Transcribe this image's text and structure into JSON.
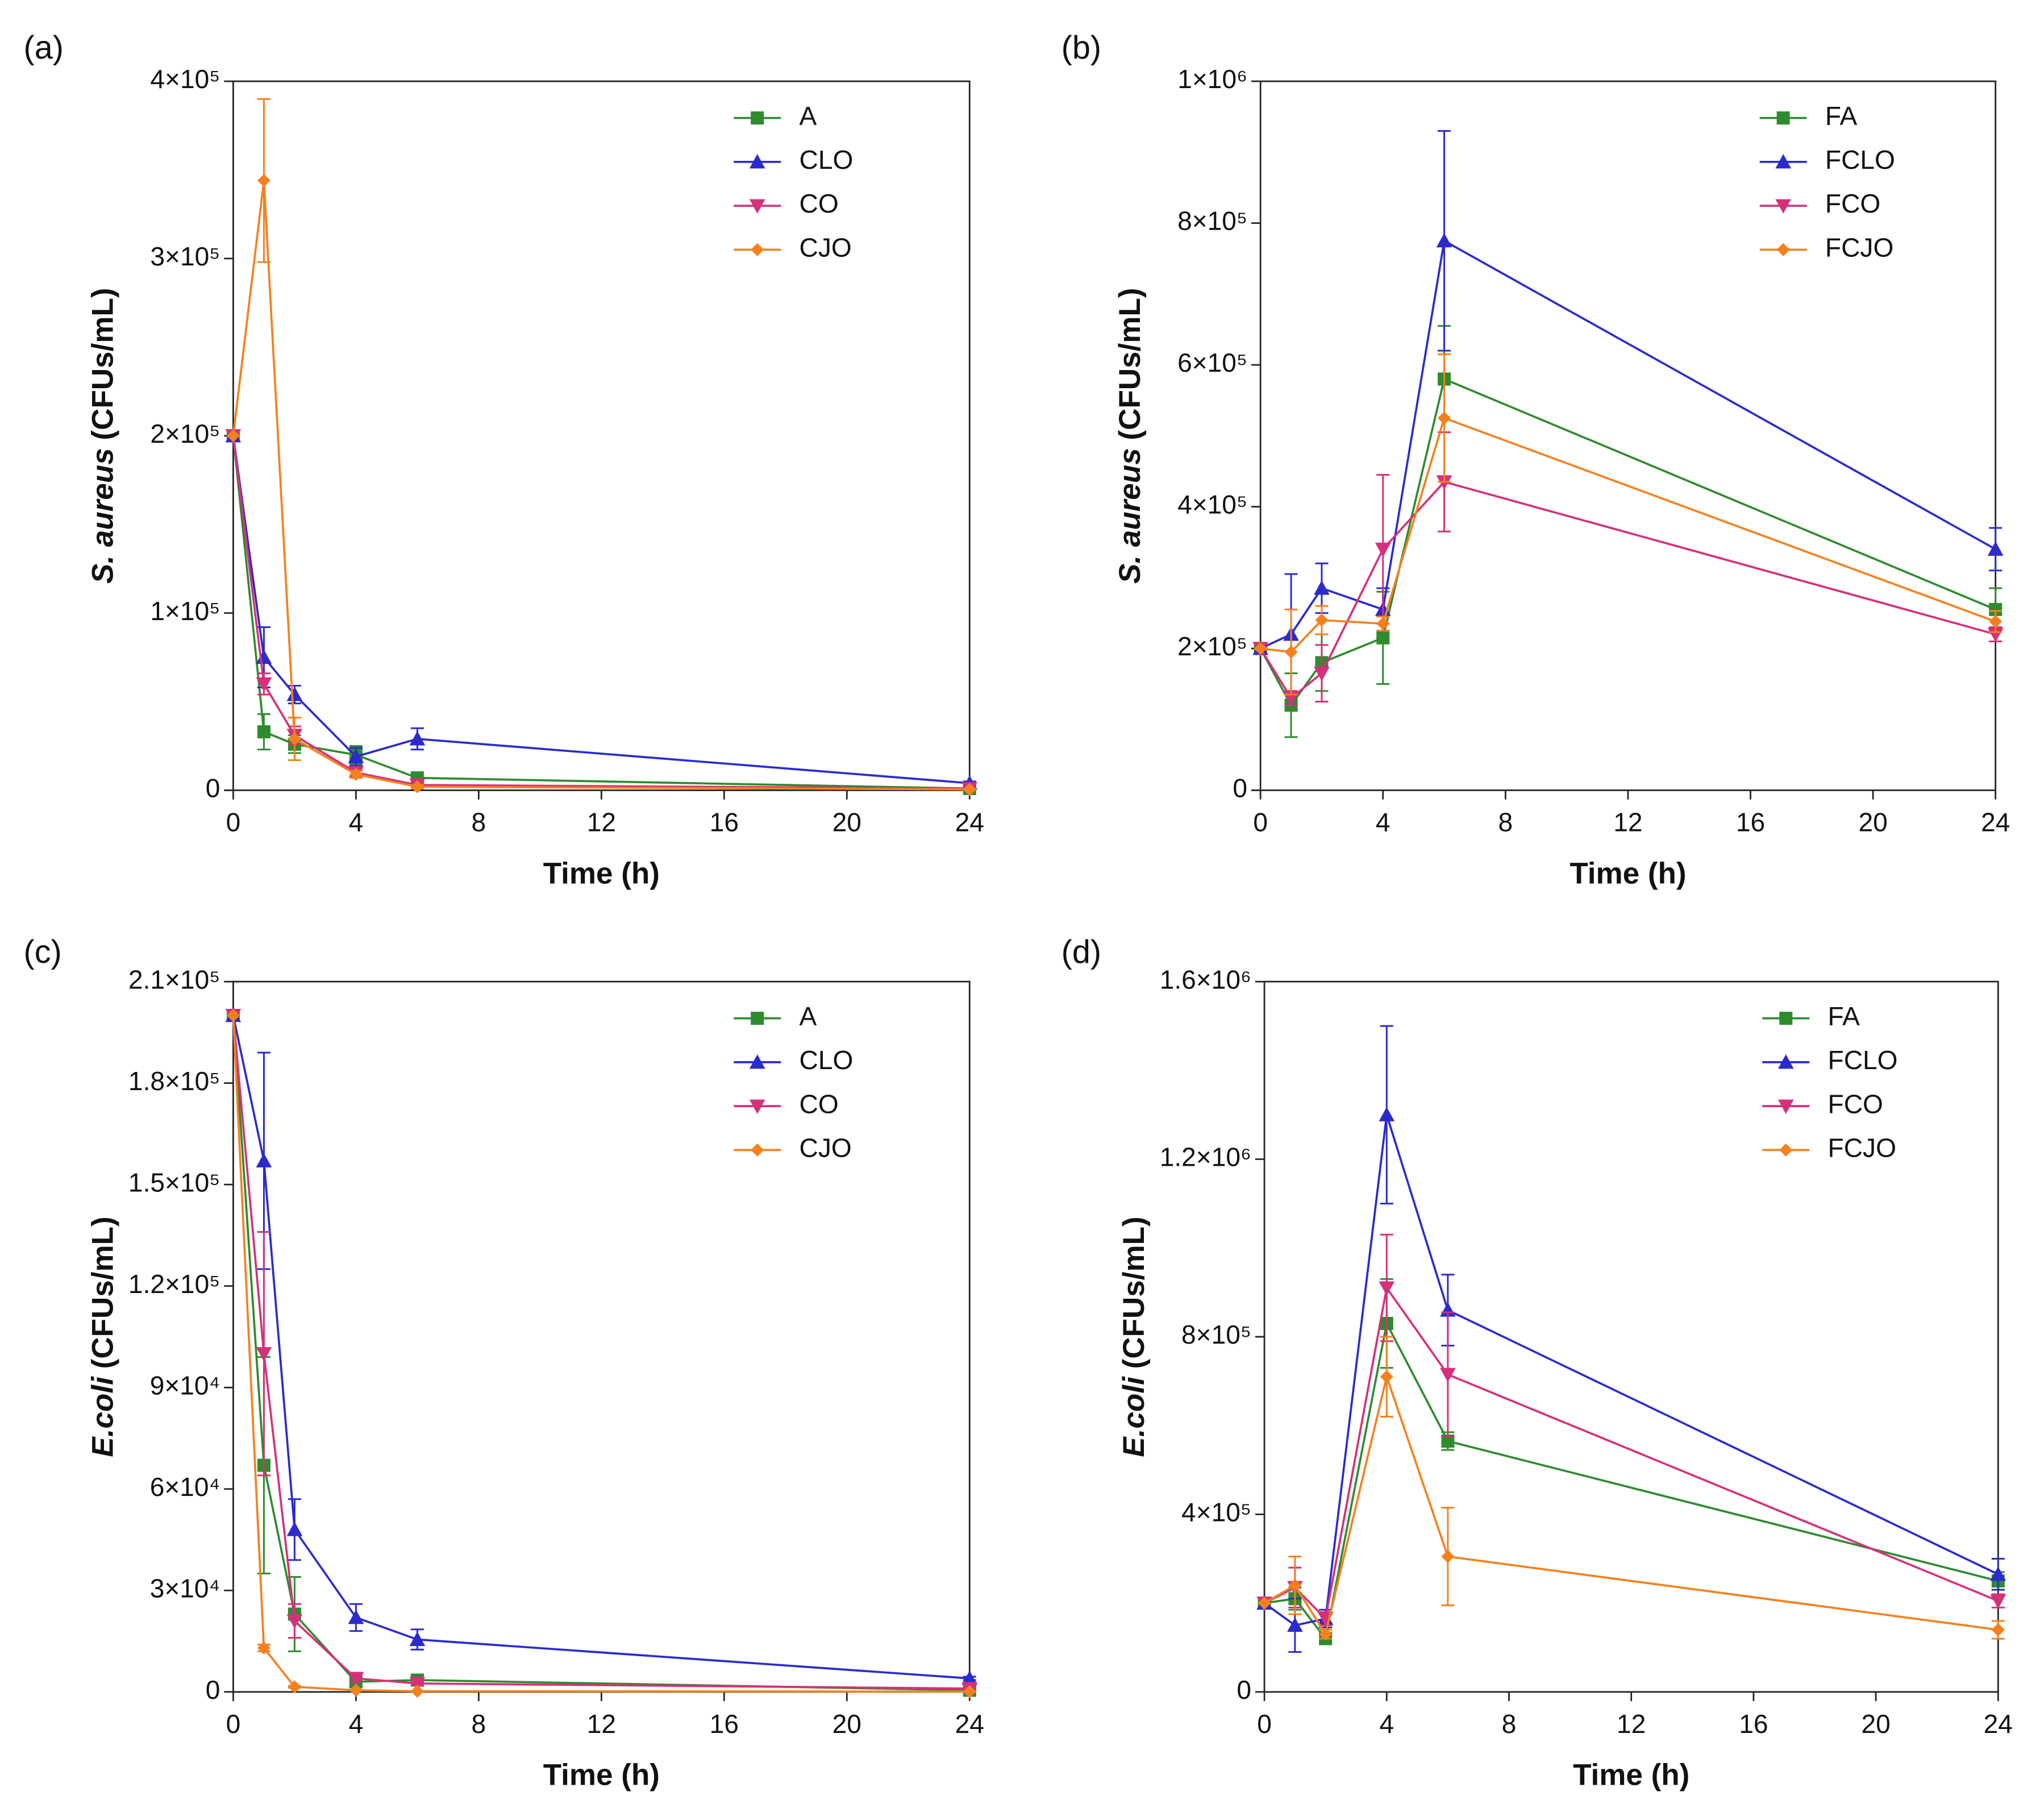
{
  "chart_data": [
    {
      "type": "line",
      "panel": "(a)",
      "xlabel": "Time (h)",
      "ylabel": {
        "organism": "S. aureus",
        "unit": "(CFUs/mL)"
      },
      "x": [
        0,
        1,
        2,
        4,
        6,
        24
      ],
      "xlim": [
        0,
        24
      ],
      "xticks": [
        0,
        4,
        8,
        12,
        16,
        20,
        24
      ],
      "ylim": [
        0,
        400000
      ],
      "yticks": [
        0,
        {
          "value": 100000,
          "label": "1×10⁵"
        },
        {
          "value": 200000,
          "label": "2×10⁵"
        },
        {
          "value": 300000,
          "label": "3×10⁵"
        },
        {
          "value": 400000,
          "label": "4×10⁵"
        }
      ],
      "legend": "top-right",
      "series": [
        {
          "name": "A",
          "color": "#2e8b2e",
          "marker": "square",
          "values": [
            200000,
            33000,
            26000,
            20000,
            7000,
            1000
          ],
          "errors": [
            0,
            10000,
            5000,
            5000,
            2000,
            500
          ]
        },
        {
          "name": "CLO",
          "color": "#2b2bcc",
          "marker": "triangle-up",
          "values": [
            200000,
            75000,
            54000,
            19000,
            29000,
            4000
          ],
          "errors": [
            0,
            17000,
            5000,
            5000,
            6000,
            1000
          ]
        },
        {
          "name": "CO",
          "color": "#d6307a",
          "marker": "triangle-down",
          "values": [
            200000,
            60000,
            31000,
            10000,
            3000,
            1000
          ],
          "errors": [
            0,
            6000,
            5000,
            2000,
            1000,
            500
          ]
        },
        {
          "name": "CJO",
          "color": "#f5801e",
          "marker": "diamond",
          "values": [
            200000,
            344000,
            29000,
            9000,
            2000,
            500
          ],
          "errors": [
            0,
            46000,
            12000,
            2000,
            1000,
            300
          ]
        }
      ]
    },
    {
      "type": "line",
      "panel": "(b)",
      "xlabel": "Time (h)",
      "ylabel": {
        "organism": "S. aureus",
        "unit": "(CFUs/mL)"
      },
      "x": [
        0,
        1,
        2,
        4,
        6,
        24
      ],
      "xlim": [
        0,
        24
      ],
      "xticks": [
        0,
        4,
        8,
        12,
        16,
        20,
        24
      ],
      "ylim": [
        0,
        1000000
      ],
      "yticks": [
        0,
        {
          "value": 200000,
          "label": "2×10⁵"
        },
        {
          "value": 400000,
          "label": "4×10⁵"
        },
        {
          "value": 600000,
          "label": "6×10⁵"
        },
        {
          "value": 800000,
          "label": "8×10⁵"
        },
        {
          "value": 1000000,
          "label": "1×10⁶"
        }
      ],
      "legend": "top-right",
      "series": [
        {
          "name": "FA",
          "color": "#2e8b2e",
          "marker": "square",
          "values": [
            200000,
            120000,
            180000,
            215000,
            580000,
            255000
          ],
          "errors": [
            0,
            45000,
            40000,
            65000,
            75000,
            30000
          ]
        },
        {
          "name": "FCLO",
          "color": "#2b2bcc",
          "marker": "triangle-up",
          "values": [
            200000,
            220000,
            285000,
            255000,
            775000,
            340000
          ],
          "errors": [
            0,
            85000,
            35000,
            30000,
            155000,
            30000
          ]
        },
        {
          "name": "FCO",
          "color": "#d6307a",
          "marker": "triangle-down",
          "values": [
            200000,
            130000,
            165000,
            340000,
            435000,
            220000
          ],
          "errors": [
            0,
            10000,
            40000,
            105000,
            70000,
            10000
          ]
        },
        {
          "name": "FCJO",
          "color": "#f5801e",
          "marker": "diamond",
          "values": [
            200000,
            195000,
            240000,
            235000,
            525000,
            238000
          ],
          "errors": [
            0,
            60000,
            20000,
            10000,
            90000,
            15000
          ]
        }
      ]
    },
    {
      "type": "line",
      "panel": "(c)",
      "xlabel": "Time (h)",
      "ylabel": {
        "organism": "E.coli",
        "unit": "(CFUs/mL)"
      },
      "x": [
        0,
        1,
        2,
        4,
        6,
        24
      ],
      "xlim": [
        0,
        24
      ],
      "xticks": [
        0,
        4,
        8,
        12,
        16,
        20,
        24
      ],
      "ylim": [
        0,
        210000
      ],
      "yticks": [
        0,
        {
          "value": 30000,
          "label": "3×10⁴"
        },
        {
          "value": 60000,
          "label": "6×10⁴"
        },
        {
          "value": 90000,
          "label": "9×10⁴"
        },
        {
          "value": 120000,
          "label": "1.2×10⁵"
        },
        {
          "value": 150000,
          "label": "1.5×10⁵"
        },
        {
          "value": 180000,
          "label": "1.8×10⁵"
        },
        {
          "value": 210000,
          "label": "2.1×10⁵"
        }
      ],
      "legend": "top-right",
      "series": [
        {
          "name": "A",
          "color": "#2e8b2e",
          "marker": "square",
          "values": [
            200000,
            67000,
            23000,
            3000,
            3500,
            500
          ],
          "errors": [
            0,
            32000,
            11000,
            1000,
            500,
            300
          ]
        },
        {
          "name": "CLO",
          "color": "#2b2bcc",
          "marker": "triangle-up",
          "values": [
            200000,
            157000,
            48000,
            22000,
            15500,
            4000
          ],
          "errors": [
            0,
            32000,
            9000,
            4000,
            3000,
            500
          ]
        },
        {
          "name": "CO",
          "color": "#d6307a",
          "marker": "triangle-down",
          "values": [
            200000,
            100000,
            21000,
            4000,
            2500,
            1000
          ],
          "errors": [
            0,
            36000,
            5000,
            1000,
            500,
            300
          ]
        },
        {
          "name": "CJO",
          "color": "#f5801e",
          "marker": "diamond",
          "values": [
            200000,
            13000,
            1500,
            500,
            200,
            100
          ],
          "errors": [
            0,
            1000,
            300,
            100,
            100,
            50
          ]
        }
      ]
    },
    {
      "type": "line",
      "panel": "(d)",
      "xlabel": "Time (h)",
      "ylabel": {
        "organism": "E.coli",
        "unit": "(CFUs/mL)"
      },
      "x": [
        0,
        1,
        2,
        4,
        6,
        24
      ],
      "xlim": [
        0,
        24
      ],
      "xticks": [
        0,
        4,
        8,
        12,
        16,
        20,
        24
      ],
      "ylim": [
        0,
        1600000
      ],
      "yticks": [
        0,
        {
          "value": 400000,
          "label": "4×10⁵"
        },
        {
          "value": 800000,
          "label": "8×10⁵"
        },
        {
          "value": 1200000,
          "label": "1.2×10⁶"
        },
        {
          "value": 1600000,
          "label": "1.6×10⁶"
        }
      ],
      "legend": "top-right",
      "series": [
        {
          "name": "FA",
          "color": "#2e8b2e",
          "marker": "square",
          "values": [
            200000,
            210000,
            120000,
            830000,
            565000,
            250000
          ],
          "errors": [
            0,
            25000,
            10000,
            100000,
            20000,
            20000
          ]
        },
        {
          "name": "FCLO",
          "color": "#2b2bcc",
          "marker": "triangle-up",
          "values": [
            200000,
            150000,
            165000,
            1300000,
            860000,
            265000
          ],
          "errors": [
            0,
            60000,
            20000,
            200000,
            80000,
            35000
          ]
        },
        {
          "name": "FCO",
          "color": "#d6307a",
          "marker": "triangle-down",
          "values": [
            200000,
            235000,
            165000,
            910000,
            715000,
            205000
          ],
          "errors": [
            0,
            45000,
            15000,
            120000,
            140000,
            15000
          ]
        },
        {
          "name": "FCJO",
          "color": "#f5801e",
          "marker": "diamond",
          "values": [
            200000,
            240000,
            130000,
            710000,
            305000,
            140000
          ],
          "errors": [
            0,
            65000,
            10000,
            90000,
            110000,
            20000
          ]
        }
      ]
    }
  ]
}
